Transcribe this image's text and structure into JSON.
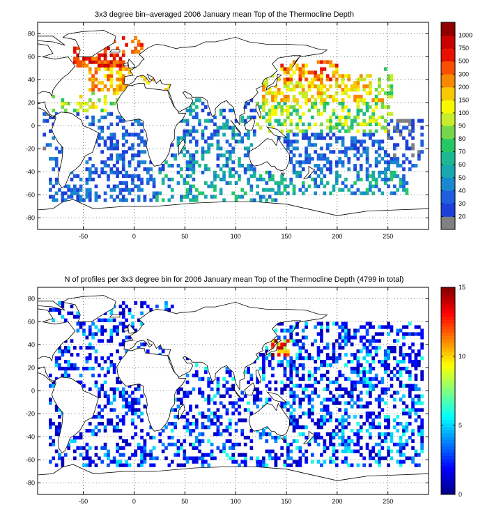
{
  "chart_data": [
    {
      "type": "heatmap",
      "title": "3x3 degree bin–averaged 2006 January mean Top of the Thermocline Depth",
      "xlim": [
        -95,
        290
      ],
      "ylim": [
        -90,
        90
      ],
      "x_ticks": [
        "-50",
        "0",
        "50",
        "100",
        "150",
        "200",
        "250"
      ],
      "x_tick_values": [
        -50,
        0,
        50,
        100,
        150,
        200,
        250
      ],
      "y_ticks": [
        "80",
        "60",
        "40",
        "20",
        "0",
        "-20",
        "-40",
        "-60",
        "-80"
      ],
      "y_tick_values": [
        80,
        60,
        40,
        20,
        0,
        -20,
        -40,
        -60,
        -80
      ],
      "grid": "dotted",
      "colorbar": {
        "labels": [
          "20",
          "30",
          "40",
          "50",
          "60",
          "70",
          "80",
          "90",
          "100",
          "150",
          "200",
          "300",
          "500",
          "750",
          "1000"
        ],
        "colors": [
          "#808080",
          "#1d3fd8",
          "#1e5fe0",
          "#1a88d0",
          "#19a8b0",
          "#1db890",
          "#26c866",
          "#74d64a",
          "#c8ec2c",
          "#f8f800",
          "#f8c800",
          "#f88800",
          "#f85000",
          "#e81000",
          "#c80000",
          "#900000"
        ]
      },
      "regions": [
        {
          "lon": [
            -60,
            -10
          ],
          "lat": [
            52,
            70
          ],
          "v": [
            11,
            12,
            13,
            14
          ],
          "d": 0.8
        },
        {
          "lon": [
            -45,
            5
          ],
          "lat": [
            30,
            52
          ],
          "v": [
            9,
            10,
            11,
            12
          ],
          "d": 0.55
        },
        {
          "lon": [
            -25,
            10
          ],
          "lat": [
            64,
            78
          ],
          "v": [
            11,
            12,
            13
          ],
          "d": 0.4
        },
        {
          "lon": [
            -80,
            -10
          ],
          "lat": [
            12,
            30
          ],
          "v": [
            6,
            7,
            8,
            9,
            10
          ],
          "d": 0.3
        },
        {
          "lon": [
            0,
            40
          ],
          "lat": [
            30,
            44
          ],
          "v": [
            9,
            10,
            11
          ],
          "d": 0.3
        },
        {
          "lon": [
            -60,
            10
          ],
          "lat": [
            -10,
            12
          ],
          "v": [
            1,
            2,
            3
          ],
          "d": 0.3
        },
        {
          "lon": [
            -90,
            -70
          ],
          "lat": [
            -20,
            12
          ],
          "v": [
            0,
            1,
            2
          ],
          "d": 0.4
        },
        {
          "lon": [
            -85,
            20
          ],
          "lat": [
            -65,
            -10
          ],
          "v": [
            1,
            2,
            3
          ],
          "d": 0.4
        },
        {
          "lon": [
            20,
            120
          ],
          "lat": [
            -40,
            25
          ],
          "v": [
            1,
            2,
            3,
            4,
            5
          ],
          "d": 0.35
        },
        {
          "lon": [
            20,
            140
          ],
          "lat": [
            -65,
            -40
          ],
          "v": [
            2,
            3,
            4,
            5,
            6
          ],
          "d": 0.3
        },
        {
          "lon": [
            125,
            245
          ],
          "lat": [
            20,
            45
          ],
          "v": [
            8,
            9,
            10,
            11
          ],
          "d": 0.6
        },
        {
          "lon": [
            140,
            200
          ],
          "lat": [
            40,
            58
          ],
          "v": [
            9,
            10,
            11,
            12,
            13
          ],
          "d": 0.45
        },
        {
          "lon": [
            120,
            255
          ],
          "lat": [
            -5,
            22
          ],
          "v": [
            5,
            6,
            7,
            8,
            9
          ],
          "d": 0.4
        },
        {
          "lon": [
            140,
            280
          ],
          "lat": [
            -40,
            -5
          ],
          "v": [
            1,
            2,
            3
          ],
          "d": 0.4
        },
        {
          "lon": [
            130,
            270
          ],
          "lat": [
            -60,
            -40
          ],
          "v": [
            2,
            3,
            4,
            5,
            6
          ],
          "d": 0.4
        },
        {
          "lon": [
            250,
            285
          ],
          "lat": [
            -30,
            5
          ],
          "v": [
            0,
            1,
            2
          ],
          "d": 0.35
        },
        {
          "lon": [
            235,
            255
          ],
          "lat": [
            25,
            50
          ],
          "v": [
            5,
            6,
            7,
            8
          ],
          "d": 0.35
        }
      ]
    },
    {
      "type": "heatmap",
      "title": "N of profiles per 3x3 degree bin for 2006 January mean Top of the Thermocline Depth  (4799 in total)",
      "xlim": [
        -95,
        290
      ],
      "ylim": [
        -90,
        90
      ],
      "x_ticks": [
        "-50",
        "0",
        "50",
        "100",
        "150",
        "200",
        "250"
      ],
      "x_tick_values": [
        -50,
        0,
        50,
        100,
        150,
        200,
        250
      ],
      "y_ticks": [
        "80",
        "60",
        "40",
        "20",
        "0",
        "-20",
        "-40",
        "-60",
        "-80"
      ],
      "y_tick_values": [
        80,
        60,
        40,
        20,
        0,
        -20,
        -40,
        -60,
        -80
      ],
      "grid": "dotted",
      "colorbar": {
        "labels": [
          "0",
          "5",
          "10",
          "15"
        ],
        "label_values": [
          0,
          5,
          10,
          15
        ],
        "range": [
          0,
          15
        ],
        "colormap": "jet"
      },
      "regions": [
        {
          "lon": [
            -85,
            40
          ],
          "lat": [
            -65,
            78
          ],
          "v": [
            1,
            1,
            1,
            2,
            2,
            3,
            4,
            5
          ],
          "d": 0.35
        },
        {
          "lon": [
            20,
            130
          ],
          "lat": [
            -65,
            30
          ],
          "v": [
            1,
            1,
            2,
            2,
            3,
            4,
            6
          ],
          "d": 0.35
        },
        {
          "lon": [
            120,
            285
          ],
          "lat": [
            -65,
            60
          ],
          "v": [
            1,
            1,
            1,
            2,
            2,
            3,
            4,
            5,
            6
          ],
          "d": 0.42
        },
        {
          "lon": [
            135,
            155
          ],
          "lat": [
            30,
            45
          ],
          "v": [
            8,
            10,
            12,
            13,
            14,
            15
          ],
          "d": 0.7
        }
      ]
    }
  ]
}
